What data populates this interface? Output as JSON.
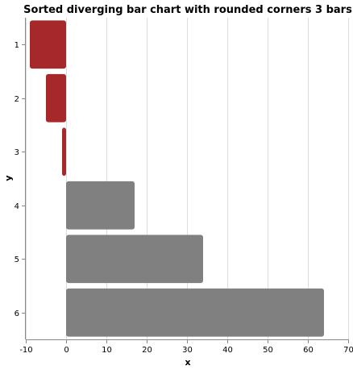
{
  "chart_data": {
    "type": "bar",
    "orientation": "horizontal",
    "title": "Sorted diverging bar chart with rounded corners 3 bars",
    "xlabel": "x",
    "ylabel": "y",
    "xlim": [
      -10,
      70
    ],
    "x_ticks": [
      -10,
      0,
      10,
      20,
      30,
      40,
      50,
      60,
      70
    ],
    "categories": [
      "1",
      "2",
      "3",
      "4",
      "5",
      "6"
    ],
    "values": [
      -9,
      -5,
      -1,
      17,
      34,
      64
    ],
    "colors": {
      "negative": "#a6282b",
      "positive": "#808080"
    },
    "grid": true
  }
}
